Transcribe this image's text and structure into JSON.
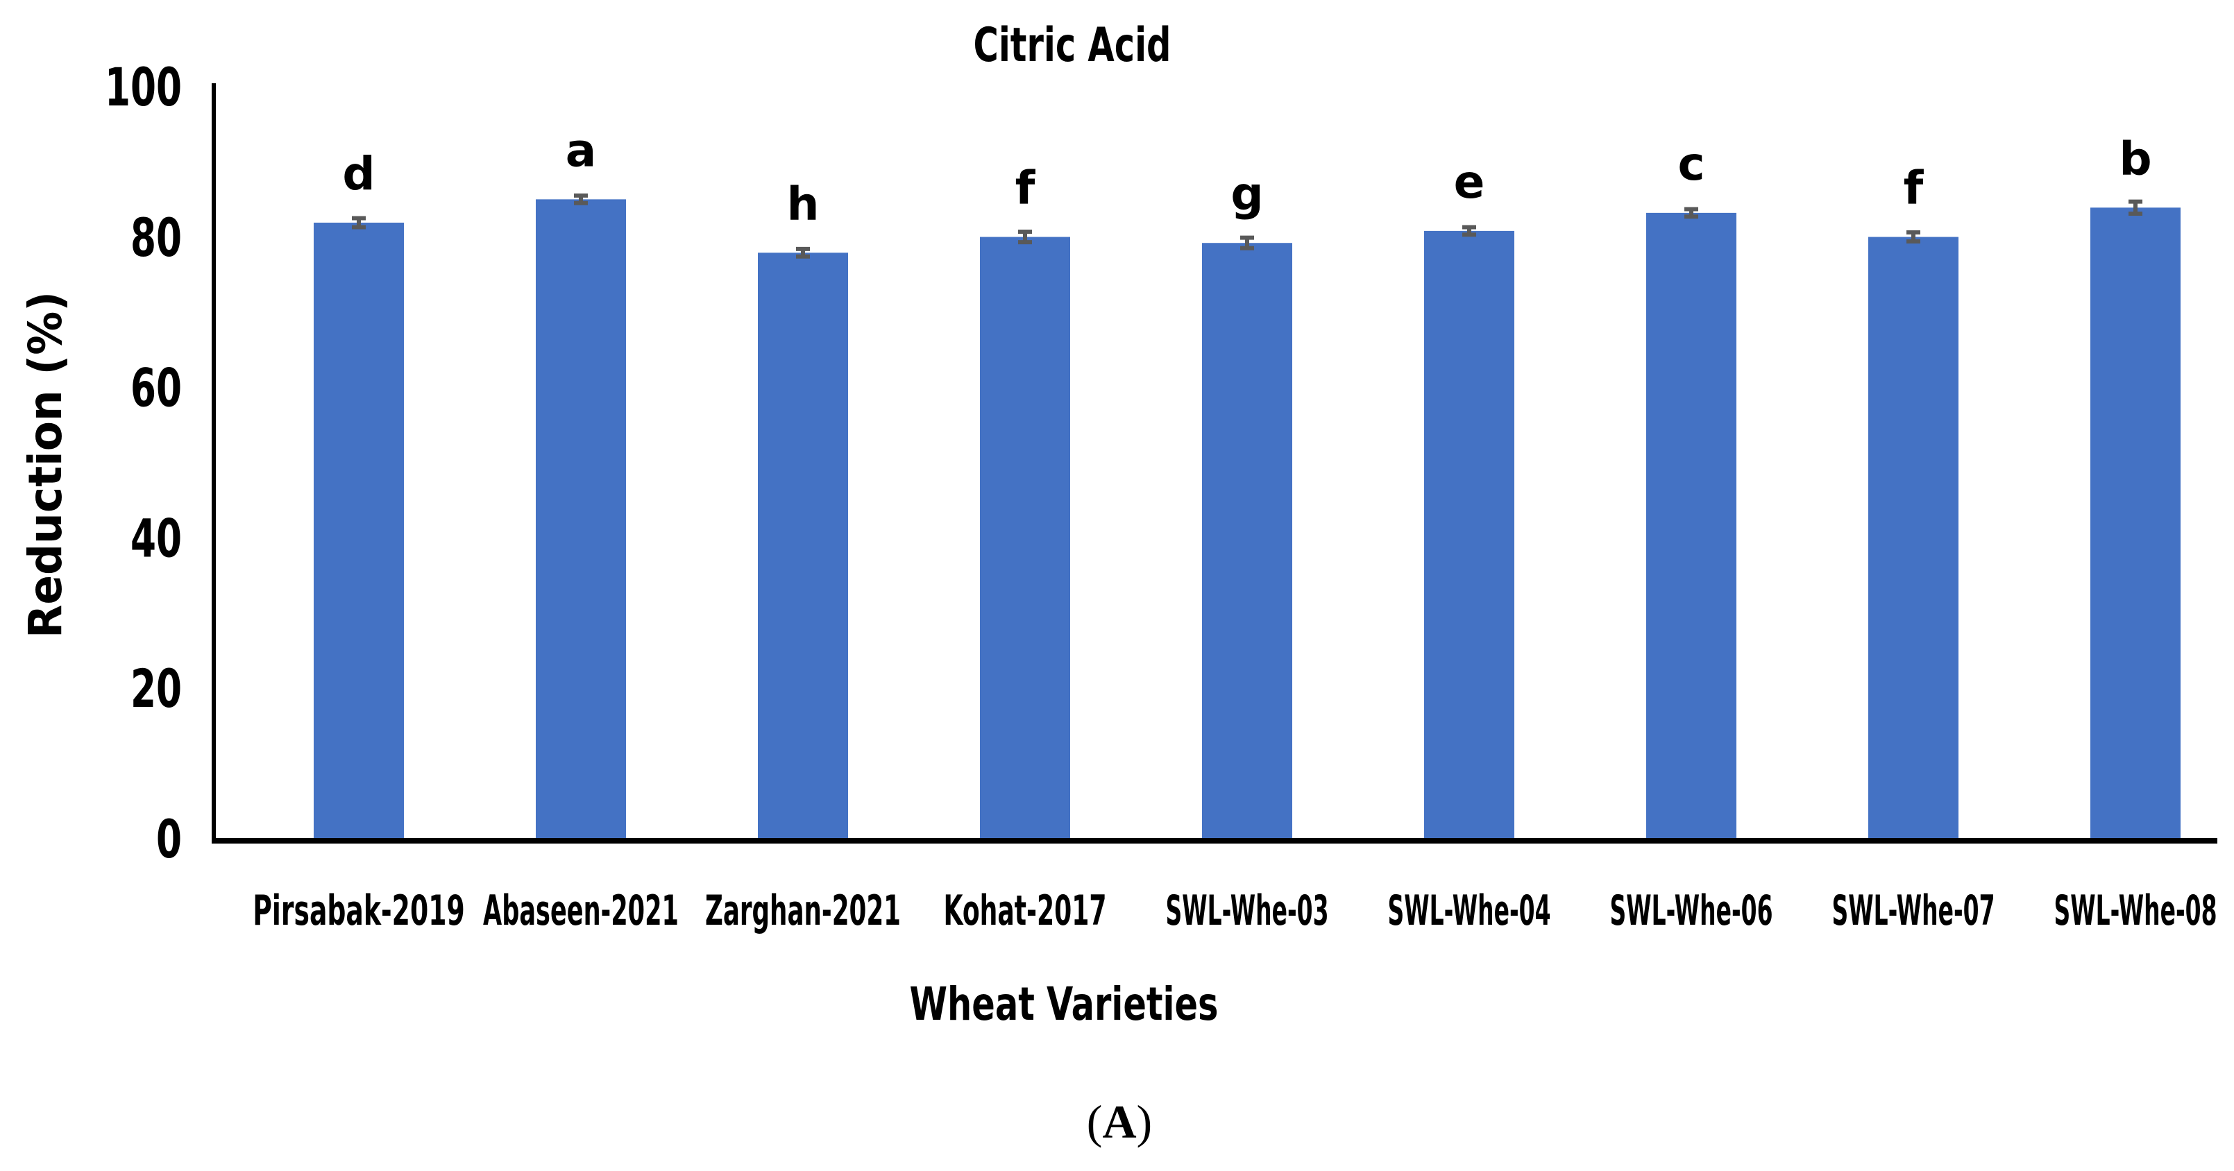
{
  "figure": {
    "title": "Citric Acid",
    "y_axis_title": "Reduction (%)",
    "x_axis_title": "Wheat Varieties",
    "panel": {
      "open": "(",
      "letter": "A",
      "close": ")"
    }
  },
  "chart_data": {
    "type": "bar",
    "title": "Citric Acid",
    "xlabel": "Wheat Varieties",
    "ylabel": "Reduction (%)",
    "ylim": [
      0,
      100
    ],
    "yticks": [
      0,
      20,
      40,
      60,
      80,
      100
    ],
    "grid": false,
    "legend_position": "none",
    "bar_color": "#4472C4",
    "error_bar_color": "#595959",
    "axis_color": "#000000",
    "categories": [
      "Pirsabak-2019",
      "Abaseen-2021",
      "Zarghan-2021",
      "Kohat-2017",
      "SWL-Whe-03",
      "SWL-Whe-04",
      "SWL-Whe-06",
      "SWL-Whe-07",
      "SWL-Whe-08"
    ],
    "values": [
      82.2,
      85.3,
      78.2,
      80.3,
      79.5,
      81.1,
      83.5,
      80.3,
      84.2
    ],
    "errors": [
      0.6,
      0.5,
      0.5,
      0.7,
      0.7,
      0.5,
      0.5,
      0.6,
      0.8
    ],
    "significance_letters": [
      "d",
      "a",
      "h",
      "f",
      "g",
      "e",
      "c",
      "f",
      "b"
    ]
  }
}
